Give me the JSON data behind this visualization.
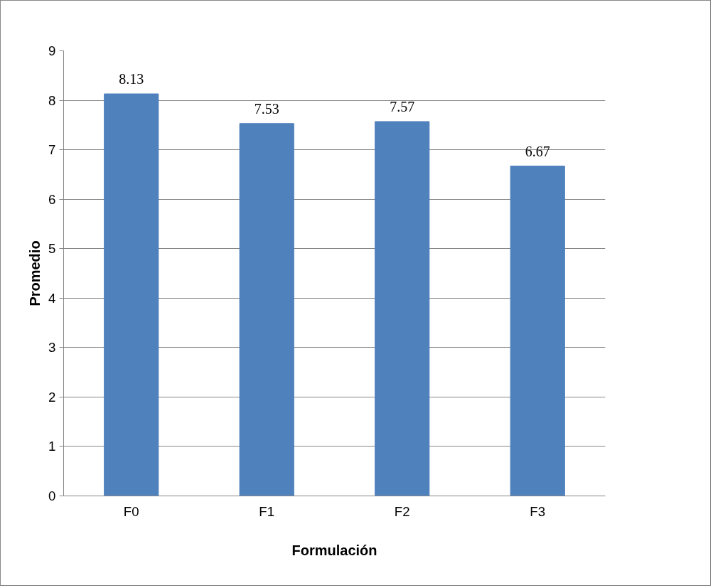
{
  "chart_data": {
    "type": "bar",
    "xlabel": "Formulación",
    "ylabel": "Promedio",
    "categories": [
      "F0",
      "F1",
      "F2",
      "F3"
    ],
    "values": [
      8.13,
      7.53,
      7.57,
      6.67
    ],
    "color": "#4f81bd",
    "ylim": [
      0,
      9
    ],
    "yticks": [
      0,
      1,
      2,
      3,
      4,
      5,
      6,
      7,
      8,
      9
    ],
    "grid": "y",
    "data_labels": true
  }
}
